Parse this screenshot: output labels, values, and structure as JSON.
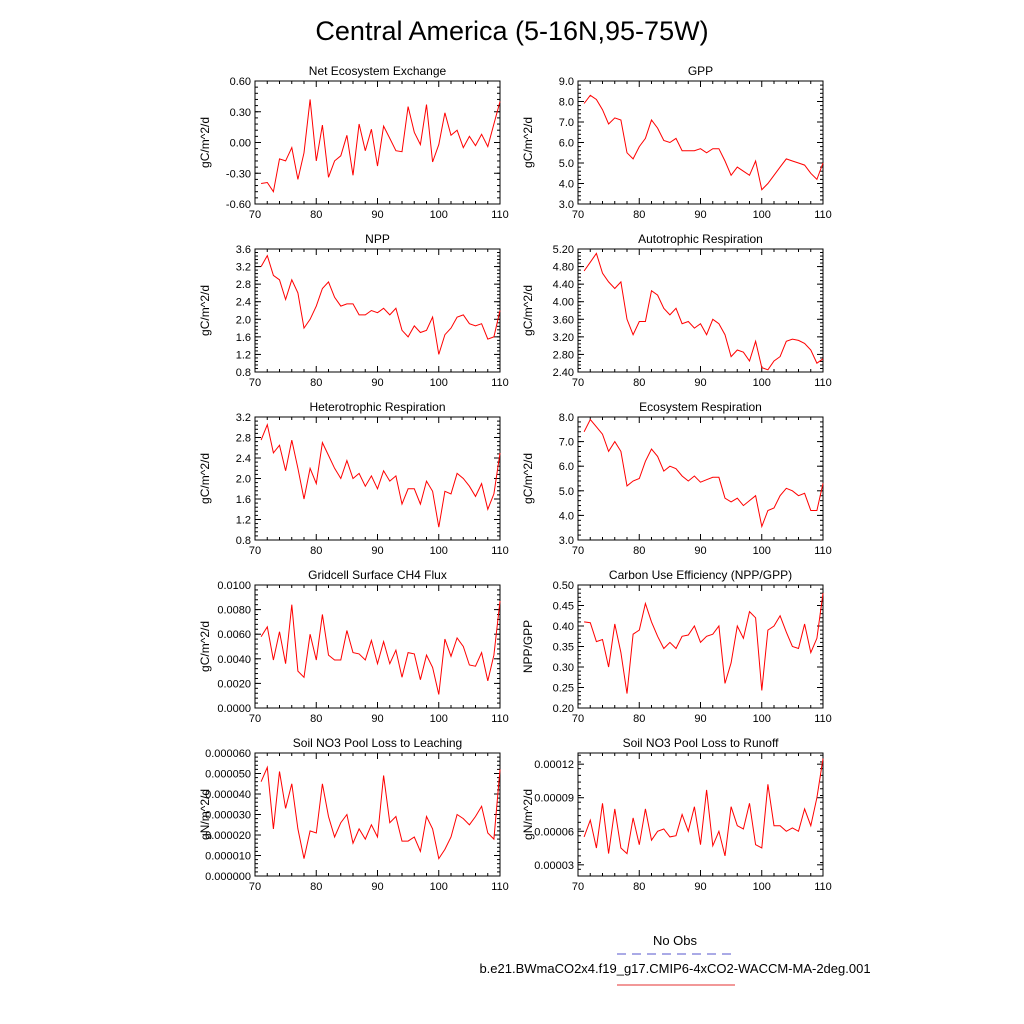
{
  "title": "Central America (5-16N,95-75W)",
  "legend": {
    "entries": [
      {
        "label": "No Obs",
        "color": "#5555cc",
        "dash": "dashed"
      },
      {
        "label": "b.e21.BWmaCO2x4.f19_g17.CMIP6-4xCO2-WACCM-MA-2deg.001",
        "color": "#e63232",
        "dash": "solid"
      }
    ]
  },
  "line_color": "#ff0000",
  "chart_data": [
    {
      "type": "line",
      "title": "Net Ecosystem Exchange",
      "ylabel": "gC/m^2/d",
      "xlim": [
        70,
        110
      ],
      "ylim": [
        -0.6,
        0.6
      ],
      "xticks": [
        "70",
        "80",
        "90",
        "100",
        "110"
      ],
      "yticks": [
        "-0.60",
        "-0.30",
        "0.00",
        "0.30",
        "0.60"
      ],
      "x": [
        71,
        72,
        73,
        74,
        75,
        76,
        77,
        78,
        79,
        80,
        81,
        82,
        83,
        84,
        85,
        86,
        87,
        88,
        89,
        90,
        91,
        92,
        93,
        94,
        95,
        96,
        97,
        98,
        99,
        100,
        101,
        102,
        103,
        104,
        105,
        106,
        107,
        108,
        109,
        110
      ],
      "y": [
        -0.4,
        -0.39,
        -0.48,
        -0.16,
        -0.18,
        -0.05,
        -0.36,
        -0.1,
        0.42,
        -0.18,
        0.17,
        -0.34,
        -0.18,
        -0.13,
        0.07,
        -0.32,
        0.18,
        -0.08,
        0.13,
        -0.23,
        0.16,
        0.04,
        -0.08,
        -0.09,
        0.35,
        0.1,
        -0.02,
        0.37,
        -0.19,
        -0.02,
        0.29,
        0.07,
        0.12,
        -0.05,
        0.06,
        -0.03,
        0.08,
        -0.04,
        0.18,
        0.4
      ]
    },
    {
      "type": "line",
      "title": "GPP",
      "ylabel": "gC/m^2/d",
      "xlim": [
        70,
        110
      ],
      "ylim": [
        3.0,
        9.0
      ],
      "xticks": [
        "70",
        "80",
        "90",
        "100",
        "110"
      ],
      "yticks": [
        "3.0",
        "4.0",
        "5.0",
        "6.0",
        "7.0",
        "8.0",
        "9.0"
      ],
      "x": [
        71,
        72,
        73,
        74,
        75,
        76,
        77,
        78,
        79,
        80,
        81,
        82,
        83,
        84,
        85,
        86,
        87,
        88,
        89,
        90,
        91,
        92,
        93,
        94,
        95,
        96,
        97,
        98,
        99,
        100,
        101,
        102,
        103,
        104,
        105,
        106,
        107,
        108,
        109,
        110
      ],
      "y": [
        7.9,
        8.3,
        8.1,
        7.6,
        6.9,
        7.2,
        7.1,
        5.5,
        5.2,
        5.8,
        6.2,
        7.1,
        6.7,
        6.1,
        6.0,
        6.2,
        5.6,
        5.6,
        5.6,
        5.7,
        5.5,
        5.7,
        5.7,
        5.1,
        4.4,
        4.8,
        4.6,
        4.4,
        5.1,
        3.7,
        4.0,
        4.4,
        4.8,
        5.2,
        5.1,
        5.0,
        4.9,
        4.5,
        4.2,
        5.0
      ]
    },
    {
      "type": "line",
      "title": "NPP",
      "ylabel": "gC/m^2/d",
      "xlim": [
        70,
        110
      ],
      "ylim": [
        0.8,
        3.6
      ],
      "xticks": [
        "70",
        "80",
        "90",
        "100",
        "110"
      ],
      "yticks": [
        "0.8",
        "1.2",
        "1.6",
        "2.0",
        "2.4",
        "2.8",
        "3.2",
        "3.6"
      ],
      "x": [
        71,
        72,
        73,
        74,
        75,
        76,
        77,
        78,
        79,
        80,
        81,
        82,
        83,
        84,
        85,
        86,
        87,
        88,
        89,
        90,
        91,
        92,
        93,
        94,
        95,
        96,
        97,
        98,
        99,
        100,
        101,
        102,
        103,
        104,
        105,
        106,
        107,
        108,
        109,
        110
      ],
      "y": [
        3.2,
        3.45,
        3.0,
        2.9,
        2.45,
        2.9,
        2.6,
        1.8,
        2.0,
        2.3,
        2.7,
        2.85,
        2.5,
        2.3,
        2.35,
        2.35,
        2.1,
        2.1,
        2.2,
        2.15,
        2.25,
        2.1,
        2.25,
        1.75,
        1.6,
        1.85,
        1.7,
        1.75,
        2.05,
        1.2,
        1.65,
        1.8,
        2.05,
        2.1,
        1.9,
        1.85,
        1.9,
        1.55,
        1.6,
        2.2
      ]
    },
    {
      "type": "line",
      "title": "Autotrophic Respiration",
      "ylabel": "gC/m^2/d",
      "xlim": [
        70,
        110
      ],
      "ylim": [
        2.4,
        5.2
      ],
      "xticks": [
        "70",
        "80",
        "90",
        "100",
        "110"
      ],
      "yticks": [
        "2.40",
        "2.80",
        "3.20",
        "3.60",
        "4.00",
        "4.40",
        "4.80",
        "5.20"
      ],
      "x": [
        71,
        72,
        73,
        74,
        75,
        76,
        77,
        78,
        79,
        80,
        81,
        82,
        83,
        84,
        85,
        86,
        87,
        88,
        89,
        90,
        91,
        92,
        93,
        94,
        95,
        96,
        97,
        98,
        99,
        100,
        101,
        102,
        103,
        104,
        105,
        106,
        107,
        108,
        109,
        110
      ],
      "y": [
        4.7,
        4.9,
        5.1,
        4.65,
        4.45,
        4.3,
        4.45,
        3.6,
        3.25,
        3.55,
        3.55,
        4.25,
        4.15,
        3.85,
        3.7,
        3.85,
        3.5,
        3.55,
        3.4,
        3.5,
        3.25,
        3.6,
        3.5,
        3.25,
        2.75,
        2.9,
        2.85,
        2.65,
        3.1,
        2.5,
        2.45,
        2.65,
        2.75,
        3.1,
        3.15,
        3.12,
        3.05,
        2.9,
        2.6,
        2.7
      ]
    },
    {
      "type": "line",
      "title": "Heterotrophic Respiration",
      "ylabel": "gC/m^2/d",
      "xlim": [
        70,
        110
      ],
      "ylim": [
        0.8,
        3.2
      ],
      "xticks": [
        "70",
        "80",
        "90",
        "100",
        "110"
      ],
      "yticks": [
        "0.8",
        "1.2",
        "1.6",
        "2.0",
        "2.4",
        "2.8",
        "3.2"
      ],
      "x": [
        71,
        72,
        73,
        74,
        75,
        76,
        77,
        78,
        79,
        80,
        81,
        82,
        83,
        84,
        85,
        86,
        87,
        88,
        89,
        90,
        91,
        92,
        93,
        94,
        95,
        96,
        97,
        98,
        99,
        100,
        101,
        102,
        103,
        104,
        105,
        106,
        107,
        108,
        109,
        110
      ],
      "y": [
        2.75,
        3.05,
        2.5,
        2.65,
        2.15,
        2.75,
        2.2,
        1.6,
        2.2,
        1.9,
        2.7,
        2.45,
        2.2,
        2.0,
        2.35,
        2.0,
        2.1,
        1.85,
        2.05,
        1.8,
        2.15,
        1.95,
        2.05,
        1.5,
        1.8,
        1.8,
        1.5,
        1.95,
        1.75,
        1.05,
        1.75,
        1.7,
        2.1,
        2.0,
        1.85,
        1.65,
        1.9,
        1.4,
        1.7,
        2.5
      ]
    },
    {
      "type": "line",
      "title": "Ecosystem Respiration",
      "ylabel": "gC/m^2/d",
      "xlim": [
        70,
        110
      ],
      "ylim": [
        3.0,
        8.0
      ],
      "xticks": [
        "70",
        "80",
        "90",
        "100",
        "110"
      ],
      "yticks": [
        "3.0",
        "4.0",
        "5.0",
        "6.0",
        "7.0",
        "8.0"
      ],
      "x": [
        71,
        72,
        73,
        74,
        75,
        76,
        77,
        78,
        79,
        80,
        81,
        82,
        83,
        84,
        85,
        86,
        87,
        88,
        89,
        90,
        91,
        92,
        93,
        94,
        95,
        96,
        97,
        98,
        99,
        100,
        101,
        102,
        103,
        104,
        105,
        106,
        107,
        108,
        109,
        110
      ],
      "y": [
        7.4,
        7.9,
        7.6,
        7.3,
        6.6,
        7.0,
        6.6,
        5.2,
        5.4,
        5.5,
        6.2,
        6.7,
        6.4,
        5.8,
        6.0,
        5.9,
        5.6,
        5.4,
        5.6,
        5.35,
        5.45,
        5.55,
        5.55,
        4.7,
        4.55,
        4.7,
        4.4,
        4.6,
        4.8,
        3.55,
        4.2,
        4.3,
        4.8,
        5.1,
        5.0,
        4.8,
        4.9,
        4.2,
        4.2,
        5.3
      ]
    },
    {
      "type": "line",
      "title": "Gridcell Surface CH4 Flux",
      "ylabel": "gC/m^2/d",
      "xlim": [
        70,
        110
      ],
      "ylim": [
        0.0,
        0.01
      ],
      "xticks": [
        "70",
        "80",
        "90",
        "100",
        "110"
      ],
      "yticks": [
        "0.0000",
        "0.0020",
        "0.0040",
        "0.0060",
        "0.0080",
        "0.0100"
      ],
      "x": [
        71,
        72,
        73,
        74,
        75,
        76,
        77,
        78,
        79,
        80,
        81,
        82,
        83,
        84,
        85,
        86,
        87,
        88,
        89,
        90,
        91,
        92,
        93,
        94,
        95,
        96,
        97,
        98,
        99,
        100,
        101,
        102,
        103,
        104,
        105,
        106,
        107,
        108,
        109,
        110
      ],
      "y": [
        0.0058,
        0.0066,
        0.0039,
        0.0062,
        0.0036,
        0.0084,
        0.003,
        0.0025,
        0.006,
        0.0039,
        0.0076,
        0.0043,
        0.0039,
        0.0039,
        0.0063,
        0.0045,
        0.0044,
        0.0039,
        0.0055,
        0.0036,
        0.0054,
        0.0036,
        0.0047,
        0.0025,
        0.0045,
        0.0044,
        0.0023,
        0.0043,
        0.0033,
        0.0011,
        0.0056,
        0.0042,
        0.0057,
        0.005,
        0.0035,
        0.0034,
        0.0045,
        0.0022,
        0.0043,
        0.0087
      ]
    },
    {
      "type": "line",
      "title": "Carbon Use Efficiency (NPP/GPP)",
      "ylabel": "NPP/GPP",
      "xlim": [
        70,
        110
      ],
      "ylim": [
        0.2,
        0.5
      ],
      "xticks": [
        "70",
        "80",
        "90",
        "100",
        "110"
      ],
      "yticks": [
        "0.20",
        "0.25",
        "0.30",
        "0.35",
        "0.40",
        "0.45",
        "0.50"
      ],
      "x": [
        71,
        72,
        73,
        74,
        75,
        76,
        77,
        78,
        79,
        80,
        81,
        82,
        83,
        84,
        85,
        86,
        87,
        88,
        89,
        90,
        91,
        92,
        93,
        94,
        95,
        96,
        97,
        98,
        99,
        100,
        101,
        102,
        103,
        104,
        105,
        106,
        107,
        108,
        109,
        110
      ],
      "y": [
        0.41,
        0.408,
        0.362,
        0.367,
        0.3,
        0.405,
        0.335,
        0.235,
        0.38,
        0.39,
        0.455,
        0.41,
        0.375,
        0.345,
        0.36,
        0.345,
        0.375,
        0.378,
        0.4,
        0.36,
        0.375,
        0.38,
        0.4,
        0.26,
        0.31,
        0.4,
        0.37,
        0.435,
        0.42,
        0.243,
        0.39,
        0.4,
        0.425,
        0.385,
        0.35,
        0.345,
        0.405,
        0.335,
        0.37,
        0.48
      ]
    },
    {
      "type": "line",
      "title": "Soil NO3 Pool Loss to Leaching",
      "ylabel": "gN/m^2/d",
      "xlim": [
        70,
        110
      ],
      "ylim": [
        0.0,
        6e-05
      ],
      "xticks": [
        "70",
        "80",
        "90",
        "100",
        "110"
      ],
      "yticks": [
        "0.000000",
        "0.000010",
        "0.000020",
        "0.000030",
        "0.000040",
        "0.000050",
        "0.000060"
      ],
      "x": [
        71,
        72,
        73,
        74,
        75,
        76,
        77,
        78,
        79,
        80,
        81,
        82,
        83,
        84,
        85,
        86,
        87,
        88,
        89,
        90,
        91,
        92,
        93,
        94,
        95,
        96,
        97,
        98,
        99,
        100,
        101,
        102,
        103,
        104,
        105,
        106,
        107,
        108,
        109,
        110
      ],
      "y": [
        4.6e-05,
        5.3e-05,
        2.3e-05,
        5.1e-05,
        3.3e-05,
        4.5e-05,
        2.3e-05,
        8.5e-06,
        2.2e-05,
        2.1e-05,
        4.5e-05,
        2.9e-05,
        1.9e-05,
        2.6e-05,
        3e-05,
        1.6e-05,
        2.3e-05,
        1.8e-05,
        2.5e-05,
        1.9e-05,
        4.9e-05,
        2.6e-05,
        2.9e-05,
        1.7e-05,
        1.7e-05,
        1.9e-05,
        1.2e-05,
        2.9e-05,
        2.3e-05,
        8.5e-06,
        1.3e-05,
        1.9e-05,
        3e-05,
        2.8e-05,
        2.5e-05,
        2.9e-05,
        3.4e-05,
        2.1e-05,
        1.8e-05,
        5.2e-05
      ]
    },
    {
      "type": "line",
      "title": "Soil NO3 Pool Loss to Runoff",
      "ylabel": "gN/m^2/d",
      "xlim": [
        70,
        110
      ],
      "ylim": [
        2e-05,
        0.00013
      ],
      "xticks": [
        "70",
        "80",
        "90",
        "100",
        "110"
      ],
      "yticks": [
        "0.00003",
        "0.00006",
        "0.00009",
        "0.00012"
      ],
      "ytick_values": [
        3e-05,
        6e-05,
        9e-05,
        0.00012
      ],
      "x": [
        71,
        72,
        73,
        74,
        75,
        76,
        77,
        78,
        79,
        80,
        81,
        82,
        83,
        84,
        85,
        86,
        87,
        88,
        89,
        90,
        91,
        92,
        93,
        94,
        95,
        96,
        97,
        98,
        99,
        100,
        101,
        102,
        103,
        104,
        105,
        106,
        107,
        108,
        109,
        110
      ],
      "y": [
        5.5e-05,
        7e-05,
        4.5e-05,
        8.5e-05,
        4e-05,
        8e-05,
        4.5e-05,
        4e-05,
        7.2e-05,
        4.8e-05,
        8e-05,
        5.2e-05,
        6e-05,
        6.2e-05,
        5.5e-05,
        5.6e-05,
        7.5e-05,
        6e-05,
        8.2e-05,
        4.8e-05,
        9.7e-05,
        4.7e-05,
        6e-05,
        3.8e-05,
        8.2e-05,
        6.5e-05,
        6.2e-05,
        8.5e-05,
        4.8e-05,
        4.5e-05,
        0.000102,
        6.5e-05,
        6.5e-05,
        6e-05,
        6.3e-05,
        6e-05,
        8e-05,
        6.5e-05,
        9e-05,
        0.000125
      ]
    }
  ]
}
